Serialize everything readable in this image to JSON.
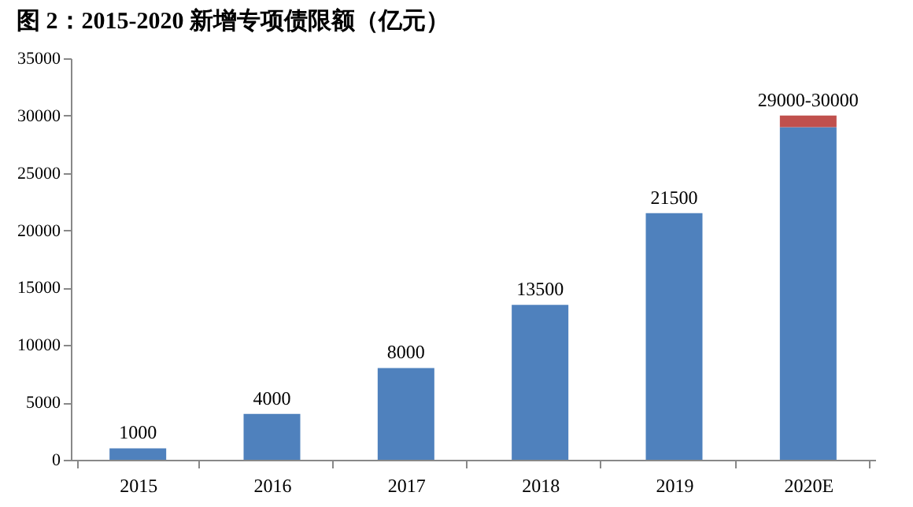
{
  "chart_data": {
    "type": "bar",
    "title": "图 2：2015-2020 新增专项债限额（亿元）",
    "categories": [
      "2015",
      "2016",
      "2017",
      "2018",
      "2019",
      "2020E"
    ],
    "stacked": true,
    "series": [
      {
        "color": "#4f81bd",
        "values": [
          1000,
          4000,
          8000,
          13500,
          21500,
          29000
        ]
      },
      {
        "color": "#c0504d",
        "values": [
          null,
          null,
          null,
          null,
          null,
          1000
        ]
      }
    ],
    "totals": [
      "1000",
      "4000",
      "8000",
      "13500",
      "21500",
      "29000-30000"
    ],
    "ylim": [
      0,
      35000
    ],
    "yticks": [
      0,
      5000,
      10000,
      15000,
      20000,
      25000,
      30000,
      35000
    ],
    "grid": false
  }
}
